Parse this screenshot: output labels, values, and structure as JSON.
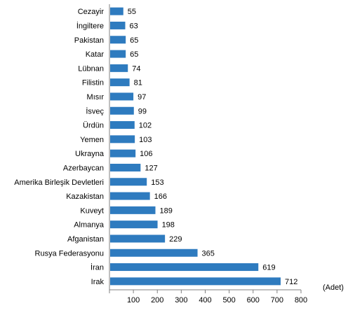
{
  "chart_data": {
    "type": "bar",
    "orientation": "horizontal",
    "categories": [
      "Cezayir",
      "İngiltere",
      "Pakistan",
      "Katar",
      "Lübnan",
      "Filistin",
      "Mısır",
      "İsveç",
      "Ürdün",
      "Yemen",
      "Ukrayna",
      "Azerbaycan",
      "Amerika Birleşik Devletleri",
      "Kazakistan",
      "Kuveyt",
      "Almanya",
      "Afganistan",
      "Rusya Federasyonu",
      "İran",
      "Irak"
    ],
    "values": [
      55,
      63,
      65,
      65,
      74,
      81,
      97,
      99,
      102,
      103,
      106,
      127,
      153,
      166,
      189,
      198,
      229,
      365,
      619,
      712
    ],
    "value_labels": [
      "55",
      "63",
      "65",
      "65",
      "74",
      "81",
      "97",
      "99",
      "102",
      "103",
      "106",
      "127",
      "153",
      "166",
      "189",
      "198",
      "229",
      "365",
      "619",
      "712"
    ],
    "x_ticks": [
      "100",
      "200",
      "300",
      "400",
      "500",
      "600",
      "700",
      "800"
    ],
    "xlim": [
      0,
      800
    ],
    "unit_label": "(Adet)",
    "bar_color": "#2e7bbf",
    "grid": false,
    "legend": "none"
  }
}
